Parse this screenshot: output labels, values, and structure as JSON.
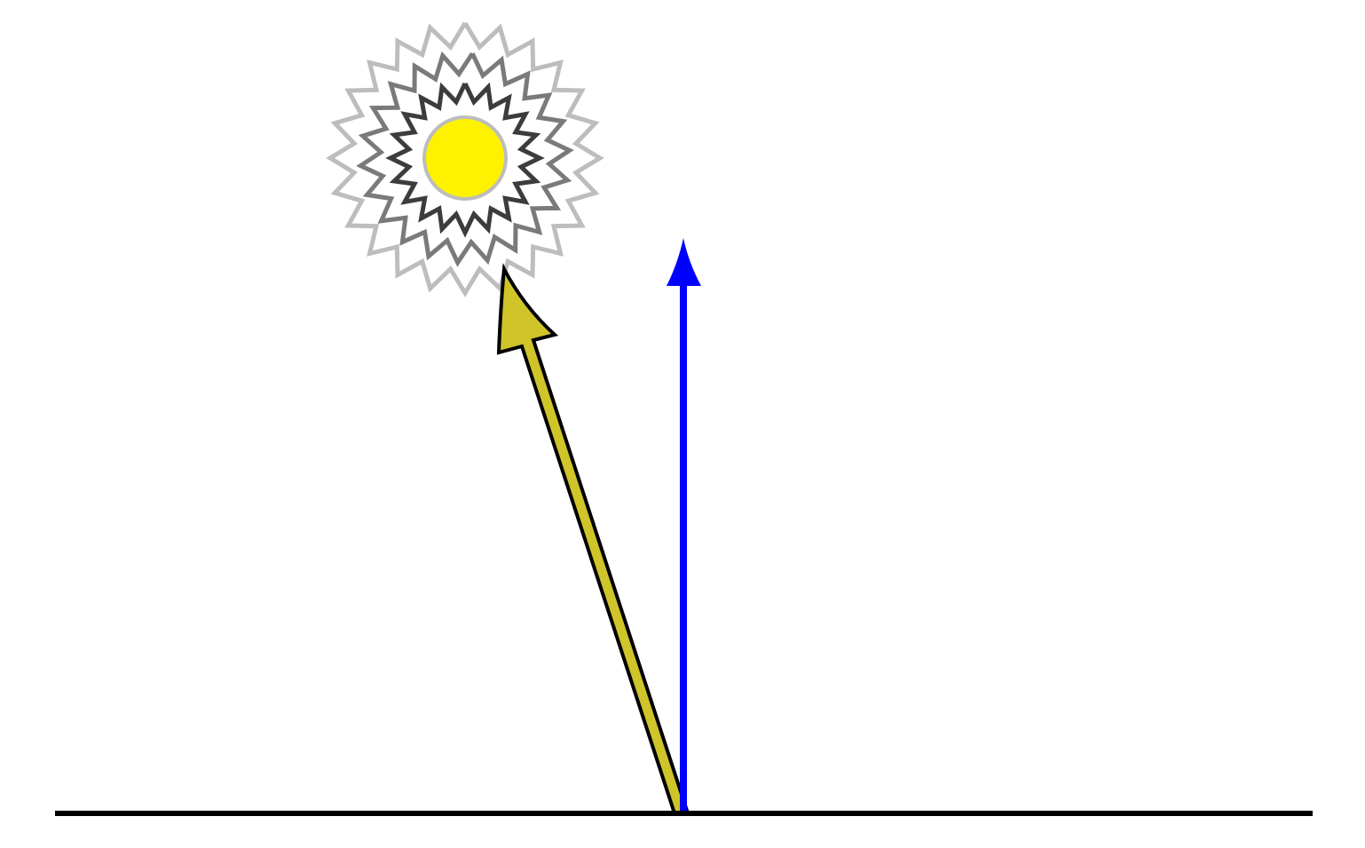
{
  "diagram": {
    "colors": {
      "background": "#ffffff",
      "ground_line": "#000000",
      "sun_fill": "#fff200",
      "sun_outline": "#bdbdbd",
      "ray_inner": "#3c3c3c",
      "ray_middle": "#7a7a7a",
      "ray_outer": "#bdbdbd",
      "sun_vector_fill": "#cfc42a",
      "sun_vector_outline": "#000000",
      "normal_vector": "#0000ff"
    },
    "icons": {
      "sun": "sun-icon"
    }
  }
}
